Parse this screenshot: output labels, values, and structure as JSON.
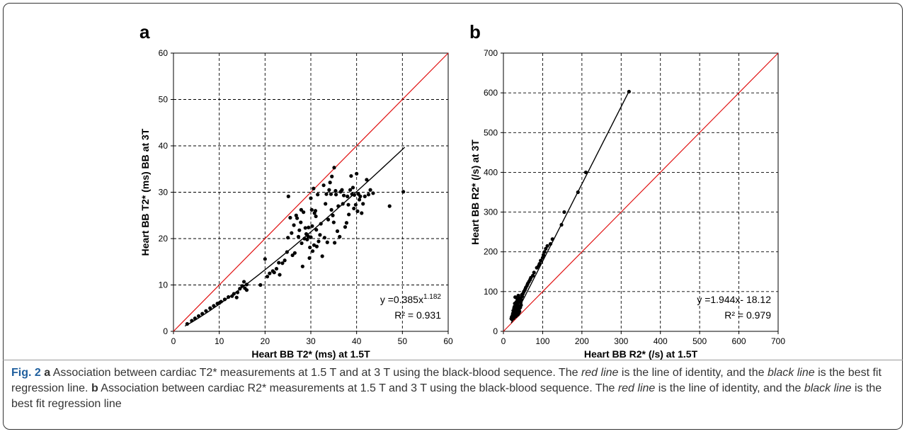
{
  "chart_data": [
    {
      "panel": "a",
      "type": "scatter",
      "xlabel": "Heart BB T2* (ms) at 1.5T",
      "ylabel": "Heart BB T2* (ms) BB at 3T",
      "xlim": [
        0,
        60
      ],
      "ylim": [
        0,
        60
      ],
      "xticks": [
        0,
        10,
        20,
        30,
        40,
        50,
        60
      ],
      "yticks": [
        0,
        10,
        20,
        30,
        40,
        50,
        60
      ],
      "grid": true,
      "equation_base": "y =0.385x",
      "equation_exp": "1.182",
      "r2": "R² = 0.931",
      "identity_color": "#e01010",
      "fit_color": "#000000",
      "fit": {
        "kind": "power",
        "a": 0.385,
        "b": 1.182,
        "x_range": [
          2.5,
          50.5
        ]
      },
      "points": [
        [
          3,
          1.6
        ],
        [
          4,
          2.3
        ],
        [
          4.7,
          2.8
        ],
        [
          5.5,
          3.3
        ],
        [
          6.3,
          3.8
        ],
        [
          7.1,
          4.4
        ],
        [
          8,
          5
        ],
        [
          8.8,
          5.5
        ],
        [
          9.6,
          6
        ],
        [
          10,
          6.1
        ],
        [
          10.4,
          6.4
        ],
        [
          11.2,
          6.9
        ],
        [
          12,
          7.4
        ],
        [
          12.8,
          7.6
        ],
        [
          13.2,
          8.1
        ],
        [
          13.8,
          7.3
        ],
        [
          14,
          8.4
        ],
        [
          14.5,
          9.2
        ],
        [
          15,
          9.8
        ],
        [
          15.4,
          10.7
        ],
        [
          15.6,
          9.3
        ],
        [
          16,
          8.9
        ],
        [
          16,
          10.1
        ],
        [
          19,
          10
        ],
        [
          20,
          15.6
        ],
        [
          20.5,
          11.8
        ],
        [
          21,
          12.5
        ],
        [
          21.7,
          13
        ],
        [
          22,
          12.7
        ],
        [
          22.5,
          13.5
        ],
        [
          23,
          14.8
        ],
        [
          23.2,
          12.2
        ],
        [
          23.8,
          14.7
        ],
        [
          24.3,
          15.3
        ],
        [
          24.8,
          17.1
        ],
        [
          25,
          20.2
        ],
        [
          25.1,
          29.1
        ],
        [
          25.5,
          24.5
        ],
        [
          25.8,
          21.2
        ],
        [
          26,
          16.4
        ],
        [
          26.3,
          22.9
        ],
        [
          26.5,
          16.9
        ],
        [
          26.8,
          25
        ],
        [
          27,
          24.4
        ],
        [
          27.3,
          20.4
        ],
        [
          27.5,
          21.8
        ],
        [
          27.8,
          23.5
        ],
        [
          27.9,
          26.2
        ],
        [
          28,
          19
        ],
        [
          28.2,
          14
        ],
        [
          28.4,
          25.7
        ],
        [
          28.6,
          20
        ],
        [
          28.8,
          22.3
        ],
        [
          29,
          21
        ],
        [
          29.2,
          19.8
        ],
        [
          29.4,
          20.5
        ],
        [
          29.5,
          22.4
        ],
        [
          29.7,
          15.8
        ],
        [
          29.8,
          18.1
        ],
        [
          30,
          28.7
        ],
        [
          30,
          20.3
        ],
        [
          30.2,
          26.2
        ],
        [
          30.3,
          22.7
        ],
        [
          30.4,
          17.3
        ],
        [
          30.6,
          30.8
        ],
        [
          30.7,
          18.6
        ],
        [
          30.8,
          25.5
        ],
        [
          31,
          26
        ],
        [
          31.1,
          24.8
        ],
        [
          31.2,
          21.9
        ],
        [
          31.3,
          18.3
        ],
        [
          31.5,
          29.5
        ],
        [
          31.7,
          19.4
        ],
        [
          32,
          20.8
        ],
        [
          32.2,
          23.2
        ],
        [
          32.5,
          16.2
        ],
        [
          32.8,
          31.5
        ],
        [
          33,
          20.2
        ],
        [
          33.2,
          27.5
        ],
        [
          33.4,
          29.6
        ],
        [
          33.6,
          19.2
        ],
        [
          33.8,
          24.1
        ],
        [
          34,
          30.5
        ],
        [
          34.2,
          32.1
        ],
        [
          34.4,
          29.6
        ],
        [
          34.5,
          26.2
        ],
        [
          34.6,
          33.4
        ],
        [
          34.8,
          25
        ],
        [
          35,
          23.5
        ],
        [
          35.1,
          35.3
        ],
        [
          35.2,
          19.1
        ],
        [
          35.4,
          30.3
        ],
        [
          35.5,
          29.5
        ],
        [
          35.8,
          21.6
        ],
        [
          36,
          27
        ],
        [
          36.3,
          20.4
        ],
        [
          36.5,
          30.1
        ],
        [
          36.8,
          30.5
        ],
        [
          37,
          27.5
        ],
        [
          37.2,
          29.3
        ],
        [
          37.5,
          22.5
        ],
        [
          37.8,
          23.4
        ],
        [
          38,
          29.1
        ],
        [
          38.2,
          27.3
        ],
        [
          38.3,
          25.2
        ],
        [
          38.6,
          30.5
        ],
        [
          38.8,
          33.5
        ],
        [
          39,
          29.6
        ],
        [
          39.2,
          31
        ],
        [
          39.4,
          26.5
        ],
        [
          39.5,
          29.4
        ],
        [
          39.8,
          27.3
        ],
        [
          40,
          34
        ],
        [
          40.2,
          25.9
        ],
        [
          40.4,
          29.6
        ],
        [
          40.6,
          28.4
        ],
        [
          40.8,
          29.1
        ],
        [
          41.1,
          25.5
        ],
        [
          41.4,
          27.5
        ],
        [
          41.8,
          29.1
        ],
        [
          42.2,
          32.7
        ],
        [
          42.6,
          29.5
        ],
        [
          43,
          30.5
        ],
        [
          43.6,
          29.8
        ],
        [
          47.2,
          27
        ],
        [
          50.2,
          30.1
        ]
      ]
    },
    {
      "panel": "b",
      "type": "scatter",
      "xlabel": "Heart BB R2* (/s) at 1.5T",
      "ylabel": "Heart BB R2*  (/s)  at 3T",
      "xlim": [
        0,
        700
      ],
      "ylim": [
        0,
        700
      ],
      "xticks": [
        0,
        100,
        200,
        300,
        400,
        500,
        600,
        700
      ],
      "yticks": [
        0,
        100,
        200,
        300,
        400,
        500,
        600,
        700
      ],
      "grid": true,
      "equation": "y =1.944x- 18.12",
      "r2": "R² = 0.979",
      "identity_color": "#e01010",
      "fit_color": "#000000",
      "fit": {
        "kind": "linear",
        "a": 1.944,
        "b": -18.12,
        "x_range": [
          20,
          320
        ]
      },
      "points": [
        [
          20,
          32
        ],
        [
          21,
          36
        ],
        [
          22,
          30
        ],
        [
          23,
          40
        ],
        [
          23,
          34
        ],
        [
          24,
          45
        ],
        [
          25,
          38
        ],
        [
          25,
          52
        ],
        [
          26,
          42
        ],
        [
          26,
          33
        ],
        [
          27,
          48
        ],
        [
          27,
          58
        ],
        [
          28,
          36
        ],
        [
          28,
          62
        ],
        [
          28,
          44
        ],
        [
          29,
          50
        ],
        [
          29,
          70
        ],
        [
          30,
          40
        ],
        [
          30,
          55
        ],
        [
          30,
          86
        ],
        [
          31,
          46
        ],
        [
          31,
          66
        ],
        [
          32,
          38
        ],
        [
          32,
          60
        ],
        [
          33,
          52
        ],
        [
          33,
          74
        ],
        [
          34,
          44
        ],
        [
          34,
          68
        ],
        [
          35,
          56
        ],
        [
          35,
          82
        ],
        [
          36,
          48
        ],
        [
          36,
          62
        ],
        [
          37,
          42
        ],
        [
          37,
          72
        ],
        [
          38,
          54
        ],
        [
          38,
          90
        ],
        [
          39,
          46
        ],
        [
          39,
          64
        ],
        [
          40,
          56
        ],
        [
          40,
          78
        ],
        [
          41,
          50
        ],
        [
          42,
          62
        ],
        [
          42,
          84
        ],
        [
          43,
          60
        ],
        [
          44,
          72
        ],
        [
          45,
          66
        ],
        [
          46,
          80
        ],
        [
          47,
          92
        ],
        [
          48,
          88
        ],
        [
          50,
          95
        ],
        [
          52,
          100
        ],
        [
          55,
          105
        ],
        [
          57,
          110
        ],
        [
          60,
          115
        ],
        [
          62,
          120
        ],
        [
          65,
          125
        ],
        [
          68,
          130
        ],
        [
          70,
          135
        ],
        [
          75,
          140
        ],
        [
          78,
          148
        ],
        [
          85,
          160
        ],
        [
          90,
          165
        ],
        [
          92,
          170
        ],
        [
          95,
          178
        ],
        [
          100,
          185
        ],
        [
          102,
          192
        ],
        [
          105,
          200
        ],
        [
          108,
          208
        ],
        [
          112,
          215
        ],
        [
          120,
          220
        ],
        [
          125,
          232
        ],
        [
          148,
          268
        ],
        [
          155,
          300
        ],
        [
          190,
          350
        ],
        [
          210,
          400
        ],
        [
          320,
          603
        ]
      ]
    }
  ],
  "panel_labels": {
    "a": "a",
    "b": "b"
  },
  "caption": {
    "fig_label": "Fig. 2",
    "a_tag": "a",
    "part1": " Association between cardiac T2* measurements at 1.5 T and at 3 T using the black-blood sequence. The ",
    "red_line": "red line",
    "part2": " is the line of identity, and the ",
    "black_line": "black line",
    "part3": " is the best fit regression line. ",
    "b_tag": "b",
    "part4": " Association between cardiac R2* measurements at 1.5 T and 3 T using the black-blood sequence. The ",
    "red_line_2": "red line",
    "part5": " is the line of identity, and the ",
    "black_line_2": "black line",
    "part6": " is the best fit regression line"
  }
}
